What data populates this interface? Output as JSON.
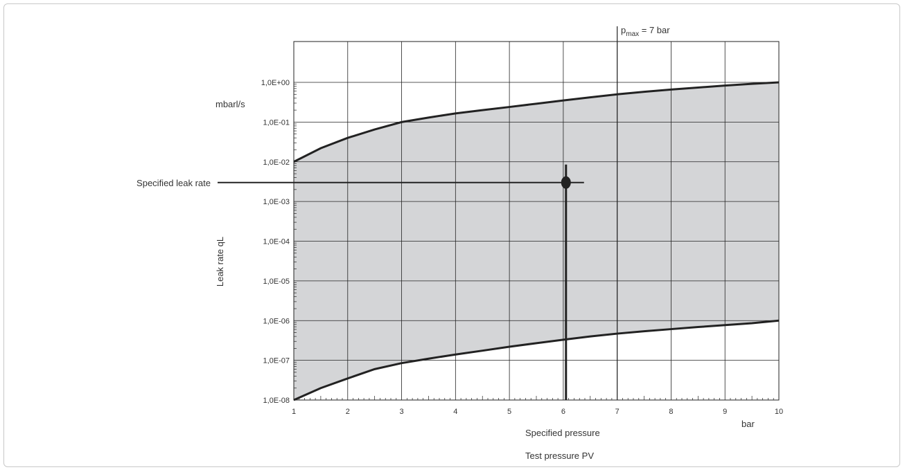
{
  "chart_data": {
    "type": "area",
    "x_axis": {
      "range": [
        1,
        10
      ],
      "ticks": [
        "1",
        "2",
        "3",
        "4",
        "5",
        "6",
        "7",
        "8",
        "9",
        "10"
      ],
      "unit_label": "bar",
      "label": "Test pressure PV",
      "scale": "linear"
    },
    "y_axis": {
      "scale": "log",
      "range": [
        1e-08,
        1.0
      ],
      "ticks": [
        "1,0E-08",
        "1,0E-07",
        "1,0E-06",
        "1,0E-05",
        "1,0E-04",
        "1,0E-03",
        "1,0E-02",
        "1,0E-01",
        "1,0E+00"
      ],
      "unit_label": "mbarl/s",
      "label": "Leak rate qL"
    },
    "grid": true,
    "upper_boundary": {
      "x": [
        1,
        1.5,
        2,
        2.5,
        3,
        3.5,
        4,
        4.5,
        5,
        5.5,
        6,
        6.5,
        7,
        7.5,
        8,
        8.5,
        9,
        9.5,
        10
      ],
      "y": [
        0.01,
        0.022,
        0.04,
        0.065,
        0.1,
        0.13,
        0.165,
        0.2,
        0.24,
        0.29,
        0.35,
        0.42,
        0.5,
        0.58,
        0.66,
        0.74,
        0.83,
        0.92,
        1.0
      ]
    },
    "lower_boundary": {
      "x": [
        1,
        1.5,
        2,
        2.5,
        3,
        3.5,
        4,
        4.5,
        5,
        5.5,
        6,
        6.5,
        7,
        7.5,
        8,
        8.5,
        9,
        9.5,
        10
      ],
      "y": [
        1e-08,
        2e-08,
        3.5e-08,
        6e-08,
        8.5e-08,
        1.1e-07,
        1.4e-07,
        1.75e-07,
        2.2e-07,
        2.7e-07,
        3.3e-07,
        4e-07,
        4.7e-07,
        5.4e-07,
        6.1e-07,
        6.9e-07,
        7.7e-07,
        8.6e-07,
        1e-06
      ]
    },
    "band_color": "#d4d5d7",
    "line_color": "#222222",
    "specified_point": {
      "x": 6.05,
      "y": 0.003
    },
    "pmax_line": {
      "x": 7,
      "label_main": "p",
      "label_sub": "max",
      "label_rest": " = 7 bar"
    },
    "annotations": {
      "specified_leak_rate": "Specified leak rate",
      "specified_pressure": "Specified pressure"
    }
  }
}
